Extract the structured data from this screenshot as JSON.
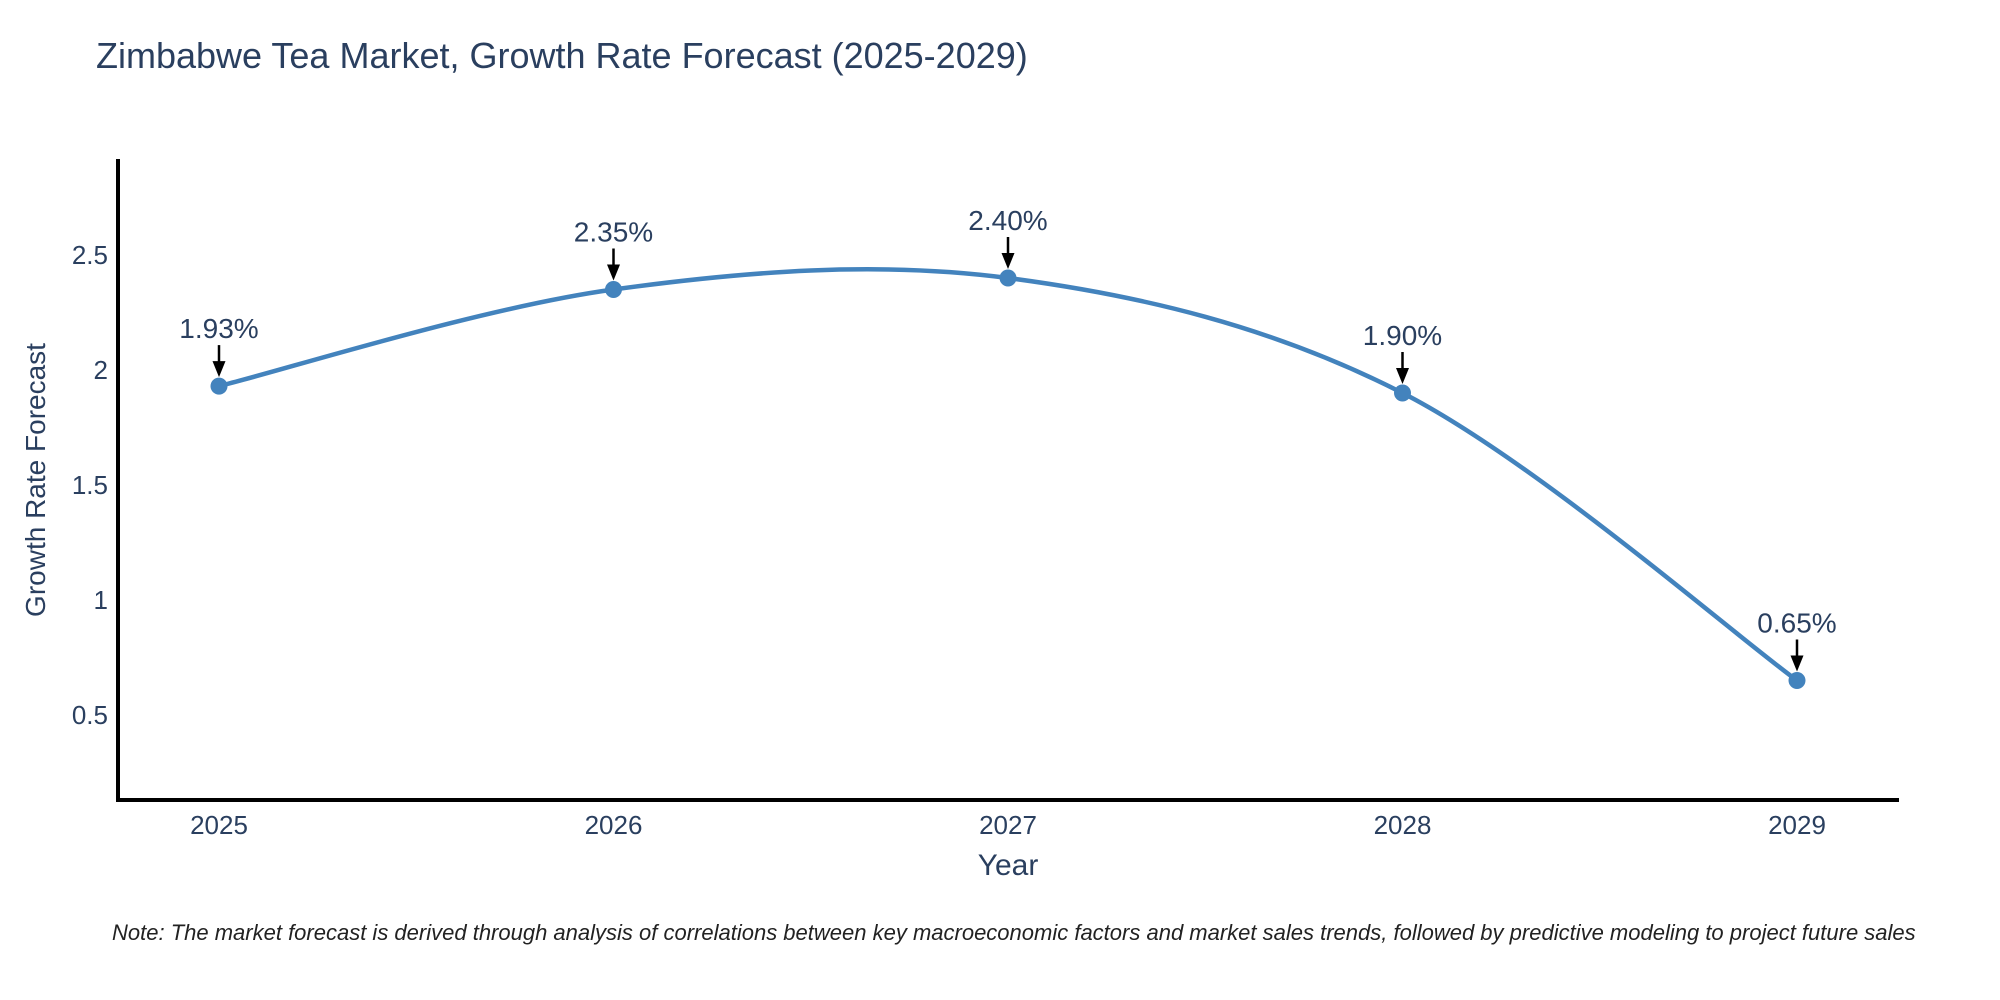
{
  "chart_data": {
    "type": "line",
    "title": "Zimbabwe Tea Market, Growth Rate Forecast (2025-2029)",
    "xlabel": "Year",
    "ylabel": "Growth Rate Forecast",
    "categories": [
      "2025",
      "2026",
      "2027",
      "2028",
      "2029"
    ],
    "values": [
      1.93,
      2.35,
      2.4,
      1.9,
      0.65
    ],
    "point_labels": [
      "1.93%",
      "2.35%",
      "2.40%",
      "1.90%",
      "0.65%"
    ],
    "yticks": [
      0.5,
      1,
      1.5,
      2,
      2.5
    ],
    "ytick_labels": [
      "0.5",
      "1",
      "1.5",
      "2",
      "2.5"
    ],
    "ylim": [
      0.13,
      2.92
    ],
    "line_shape": "spline",
    "grid": false,
    "legend_position": "none",
    "colors": {
      "line": "#4383bd",
      "marker": "#4383bd",
      "text": "#2a3f5f",
      "axis_line": "#000000",
      "annotation_arrow": "#000000",
      "background": "#ffffff"
    }
  },
  "note": "Note: The market forecast is derived through analysis of correlations between key macroeconomic factors and market sales trends, followed by predictive modeling to project future sales"
}
